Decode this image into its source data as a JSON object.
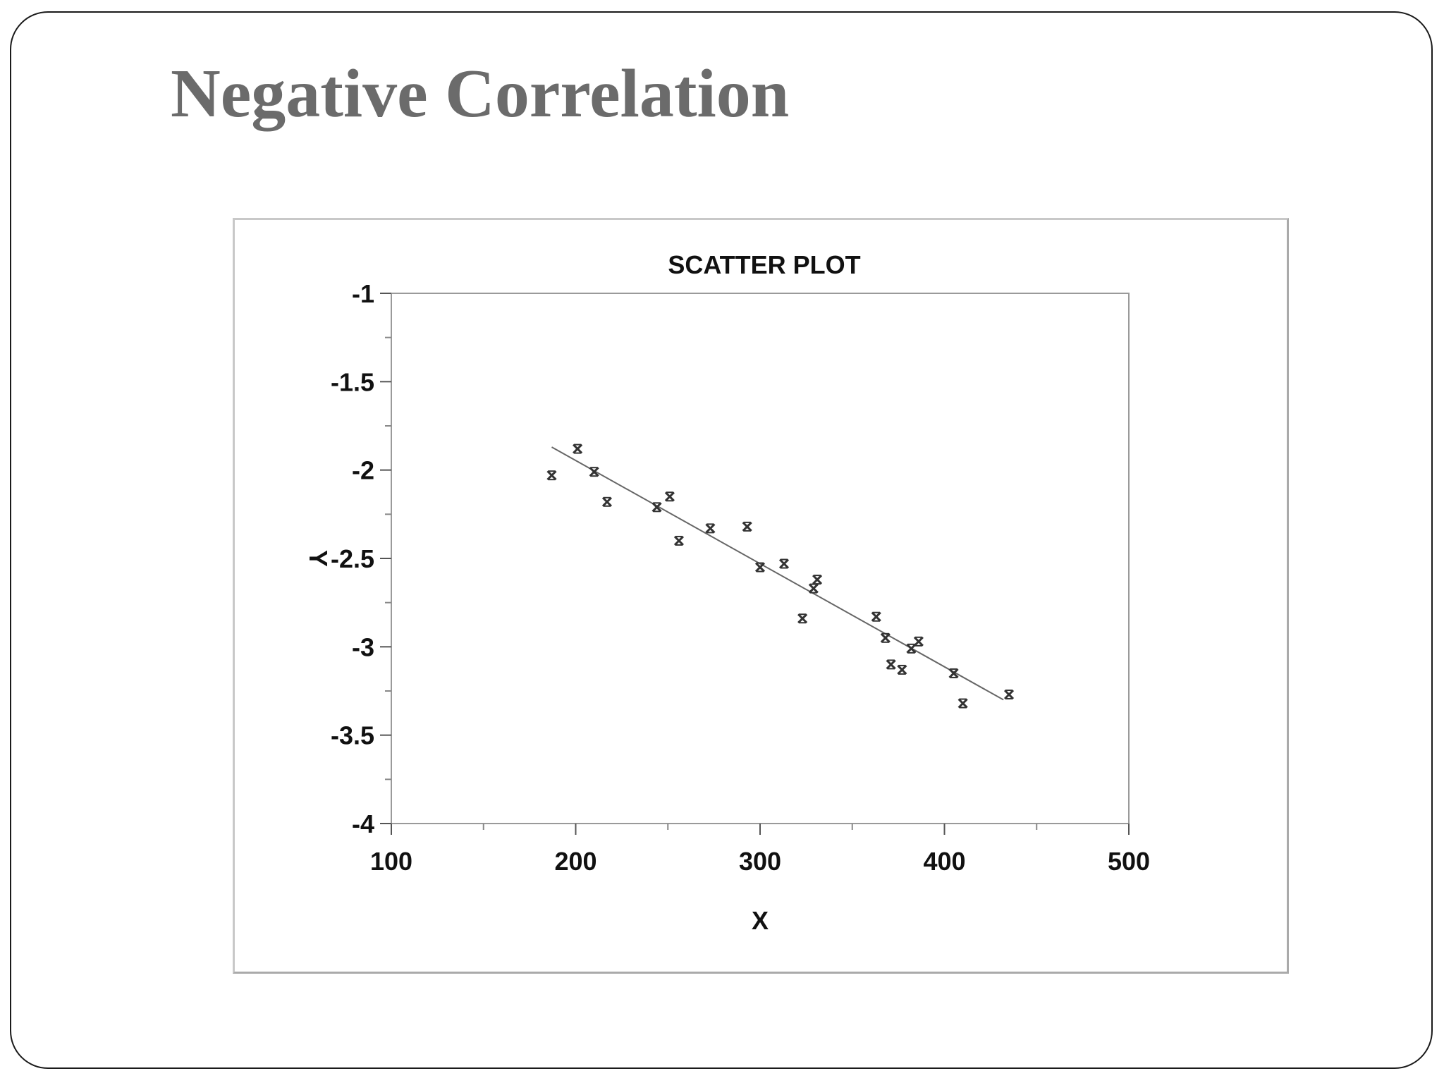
{
  "slide": {
    "title": "Negative Correlation"
  },
  "chart_data": {
    "type": "scatter",
    "title": "SCATTER PLOT",
    "xlabel": "X",
    "ylabel": "Y",
    "xlim": [
      100,
      500
    ],
    "ylim": [
      -4,
      -1
    ],
    "x_ticks": [
      "100",
      "200",
      "300",
      "400",
      "500"
    ],
    "y_ticks": [
      "-1",
      "-1.5",
      "-2",
      "-2.5",
      "-3",
      "-3.5",
      "-4"
    ],
    "grid": false,
    "legend": "none",
    "marker_color": "#333333",
    "series": [
      {
        "points": [
          [
            187,
            -2.03
          ],
          [
            201,
            -1.88
          ],
          [
            210,
            -2.01
          ],
          [
            217,
            -2.18
          ],
          [
            244,
            -2.21
          ],
          [
            251,
            -2.15
          ],
          [
            256,
            -2.4
          ],
          [
            273,
            -2.33
          ],
          [
            293,
            -2.32
          ],
          [
            300,
            -2.55
          ],
          [
            313,
            -2.53
          ],
          [
            323,
            -2.84
          ],
          [
            329,
            -2.67
          ],
          [
            331,
            -2.62
          ],
          [
            363,
            -2.83
          ],
          [
            368,
            -2.95
          ],
          [
            371,
            -3.1
          ],
          [
            377,
            -3.13
          ],
          [
            382,
            -3.01
          ],
          [
            386,
            -2.97
          ],
          [
            405,
            -3.15
          ],
          [
            410,
            -3.32
          ],
          [
            435,
            -3.27
          ]
        ]
      }
    ],
    "fit_line": {
      "x": [
        187,
        432
      ],
      "y": [
        -1.87,
        -3.3
      ],
      "color": "#666666"
    }
  }
}
